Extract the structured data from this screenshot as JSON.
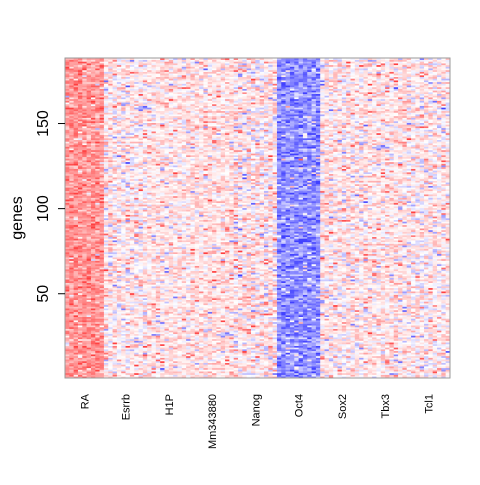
{
  "chart_data": {
    "type": "heatmap",
    "title": "",
    "xlabel": "",
    "ylabel": "genes",
    "ylim": [
      1,
      188
    ],
    "y_ticks": [
      50,
      100,
      150
    ],
    "n_genes": 188,
    "columns": [
      {
        "label": "RA",
        "width": 9,
        "mean": 0.55,
        "jitter": 0.18
      },
      {
        "label": "Esrrb",
        "width": 10,
        "mean": 0.08,
        "jitter": 0.22
      },
      {
        "label": "H1P",
        "width": 10,
        "mean": 0.12,
        "jitter": 0.18
      },
      {
        "label": "Mm343880",
        "width": 10,
        "mean": 0.15,
        "jitter": 0.18
      },
      {
        "label": "Nanog",
        "width": 10,
        "mean": 0.1,
        "jitter": 0.25
      },
      {
        "label": "Oct4",
        "width": 10,
        "mean": -0.58,
        "jitter": 0.22
      },
      {
        "label": "Sox2",
        "width": 10,
        "mean": 0.1,
        "jitter": 0.22
      },
      {
        "label": "Tbx3",
        "width": 10,
        "mean": 0.12,
        "jitter": 0.2
      },
      {
        "label": "Tcl1",
        "width": 10,
        "mean": 0.08,
        "jitter": 0.22
      }
    ],
    "color_scale": {
      "low": "#0000ff",
      "mid": "#ffffff",
      "high": "#ff0000"
    },
    "frame_color": "#999999"
  }
}
